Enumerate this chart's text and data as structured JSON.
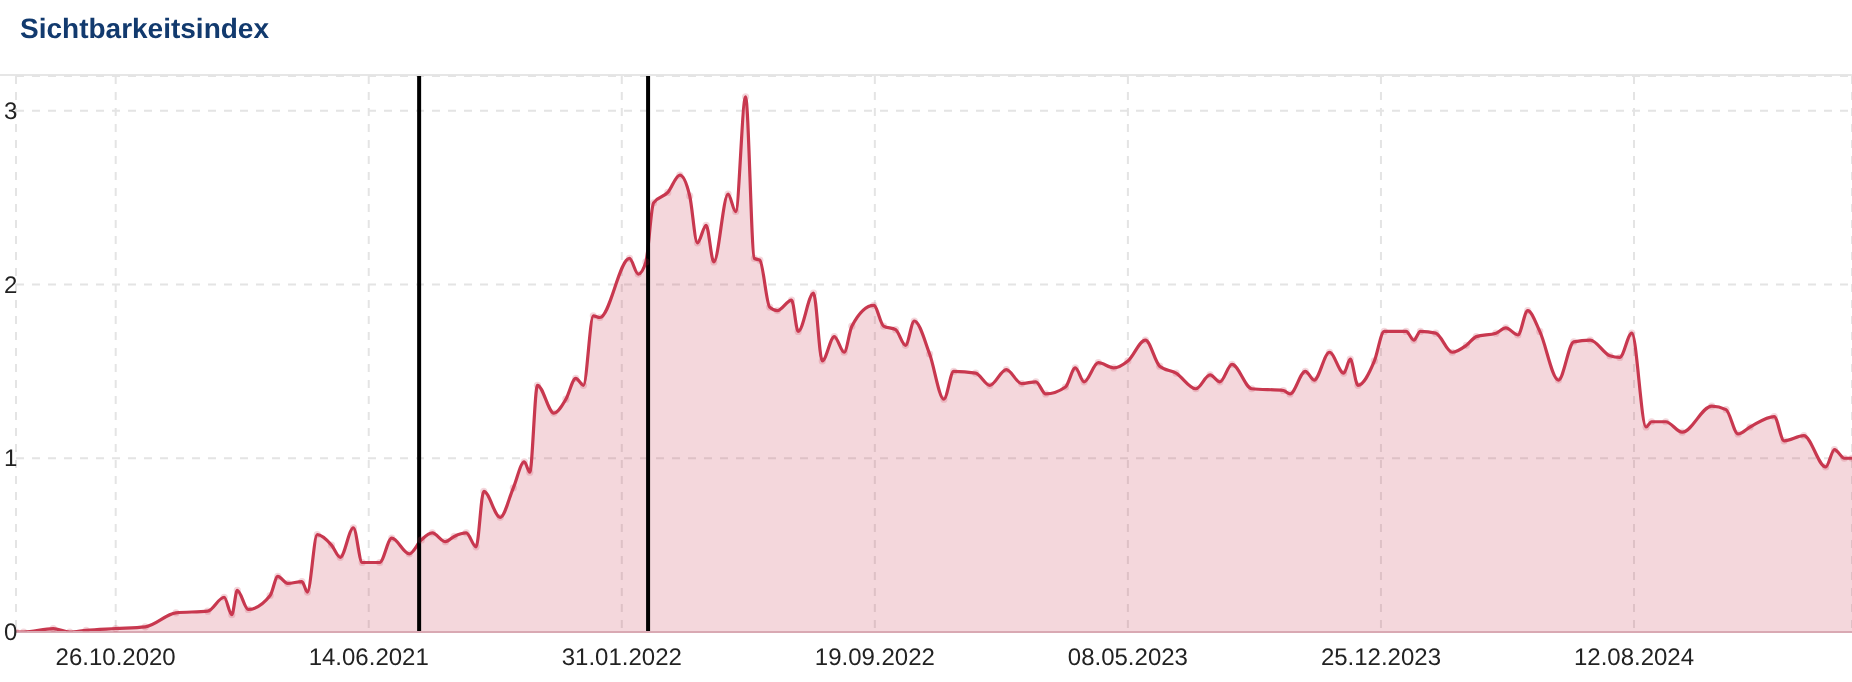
{
  "chart_data": {
    "type": "area",
    "title": "Sichtbarkeitsindex",
    "xlim": [
      "2020-07-27",
      "2025-02-27"
    ],
    "xticks": [
      {
        "value": "2020-10-26",
        "label": "26.10.2020"
      },
      {
        "value": "2021-06-14",
        "label": "14.06.2021"
      },
      {
        "value": "2022-01-31",
        "label": "31.01.2022"
      },
      {
        "value": "2022-09-19",
        "label": "19.09.2022"
      },
      {
        "value": "2023-05-08",
        "label": "08.05.2023"
      },
      {
        "value": "2023-12-25",
        "label": "25.12.2023"
      },
      {
        "value": "2024-08-12",
        "label": "12.08.2024"
      }
    ],
    "ylim": [
      0,
      3.2
    ],
    "yticks": [
      0,
      1,
      2,
      3
    ],
    "grid": true,
    "marker": "circle",
    "legend": false,
    "ref_lines": [
      {
        "axis": "x",
        "value": "2021-07-30",
        "color": "#000000"
      },
      {
        "axis": "x",
        "value": "2022-02-24",
        "color": "#000000"
      }
    ],
    "x": [
      "2020-07-27",
      "2020-08-03",
      "2020-08-30",
      "2020-09-14",
      "2020-09-29",
      "2020-10-26",
      "2020-11-22",
      "2020-12-20",
      "2021-01-18",
      "2021-02-02",
      "2021-02-09",
      "2021-02-14",
      "2021-02-24",
      "2021-03-16",
      "2021-03-23",
      "2021-04-01",
      "2021-04-14",
      "2021-04-19",
      "2021-04-28",
      "2021-05-11",
      "2021-05-19",
      "2021-05-31",
      "2021-06-08",
      "2021-06-24",
      "2021-07-05",
      "2021-07-21",
      "2021-08-01",
      "2021-08-11",
      "2021-08-23",
      "2021-08-31",
      "2021-09-11",
      "2021-09-20",
      "2021-09-27",
      "2021-10-12",
      "2021-10-24",
      "2021-11-03",
      "2021-11-08",
      "2021-11-15",
      "2021-11-30",
      "2021-12-11",
      "2021-12-20",
      "2021-12-27",
      "2022-01-05",
      "2022-01-11",
      "2022-02-07",
      "2022-02-15",
      "2022-02-22",
      "2022-03-01",
      "2022-03-14",
      "2022-03-25",
      "2022-04-03",
      "2022-04-10",
      "2022-04-18",
      "2022-04-25",
      "2022-05-08",
      "2022-05-15",
      "2022-05-24",
      "2022-06-01",
      "2022-06-06",
      "2022-06-15",
      "2022-06-22",
      "2022-07-05",
      "2022-07-11",
      "2022-07-25",
      "2022-08-02",
      "2022-08-13",
      "2022-08-22",
      "2022-08-29",
      "2022-09-18",
      "2022-09-27",
      "2022-10-08",
      "2022-10-17",
      "2022-10-25",
      "2022-11-08",
      "2022-11-21",
      "2022-11-30",
      "2022-12-20",
      "2023-01-02",
      "2023-01-17",
      "2023-01-31",
      "2023-02-13",
      "2023-02-22",
      "2023-03-12",
      "2023-03-21",
      "2023-03-29",
      "2023-04-11",
      "2023-04-25",
      "2023-05-08",
      "2023-05-24",
      "2023-06-06",
      "2023-06-21",
      "2023-07-09",
      "2023-07-22",
      "2023-07-31",
      "2023-08-11",
      "2023-08-29",
      "2023-09-27",
      "2023-10-03",
      "2023-10-17",
      "2023-10-25",
      "2023-11-08",
      "2023-11-21",
      "2023-11-27",
      "2023-12-04",
      "2023-12-19",
      "2023-12-28",
      "2024-01-17",
      "2024-01-24",
      "2024-01-30",
      "2024-02-13",
      "2024-02-28",
      "2024-03-12",
      "2024-03-21",
      "2024-04-08",
      "2024-04-17",
      "2024-04-28",
      "2024-05-07",
      "2024-05-18",
      "2024-06-04",
      "2024-06-18",
      "2024-07-03",
      "2024-07-21",
      "2024-07-30",
      "2024-08-10",
      "2024-08-23",
      "2024-08-28",
      "2024-09-10",
      "2024-09-25",
      "2024-10-22",
      "2024-11-04",
      "2024-11-15",
      "2024-11-26",
      "2024-12-18",
      "2024-12-27",
      "2025-01-14",
      "2025-02-03",
      "2025-02-11",
      "2025-02-20",
      "2025-02-27"
    ],
    "series": [
      {
        "color": "#c8384f",
        "values": [
          0.0,
          0.0,
          0.02,
          0.0,
          0.01,
          0.02,
          0.03,
          0.11,
          0.12,
          0.2,
          0.1,
          0.24,
          0.13,
          0.21,
          0.32,
          0.28,
          0.29,
          0.23,
          0.56,
          0.5,
          0.43,
          0.6,
          0.4,
          0.4,
          0.54,
          0.45,
          0.53,
          0.57,
          0.52,
          0.55,
          0.57,
          0.49,
          0.81,
          0.66,
          0.83,
          0.98,
          0.92,
          1.42,
          1.26,
          1.34,
          1.46,
          1.42,
          1.82,
          1.81,
          2.15,
          2.06,
          2.13,
          2.47,
          2.53,
          2.63,
          2.51,
          2.24,
          2.34,
          2.13,
          2.52,
          2.42,
          3.08,
          2.15,
          2.14,
          1.87,
          1.85,
          1.91,
          1.73,
          1.95,
          1.56,
          1.7,
          1.61,
          1.76,
          1.88,
          1.76,
          1.74,
          1.65,
          1.79,
          1.6,
          1.34,
          1.5,
          1.49,
          1.42,
          1.51,
          1.43,
          1.44,
          1.37,
          1.41,
          1.52,
          1.44,
          1.55,
          1.52,
          1.56,
          1.68,
          1.53,
          1.49,
          1.4,
          1.48,
          1.44,
          1.54,
          1.4,
          1.39,
          1.37,
          1.5,
          1.45,
          1.61,
          1.49,
          1.57,
          1.42,
          1.56,
          1.73,
          1.73,
          1.68,
          1.73,
          1.72,
          1.61,
          1.65,
          1.7,
          1.72,
          1.75,
          1.71,
          1.85,
          1.73,
          1.45,
          1.67,
          1.68,
          1.59,
          1.58,
          1.72,
          1.18,
          1.21,
          1.21,
          1.15,
          1.3,
          1.28,
          1.14,
          1.18,
          1.24,
          1.1,
          1.13,
          0.95,
          1.05,
          1.0,
          1.0
        ]
      }
    ]
  }
}
